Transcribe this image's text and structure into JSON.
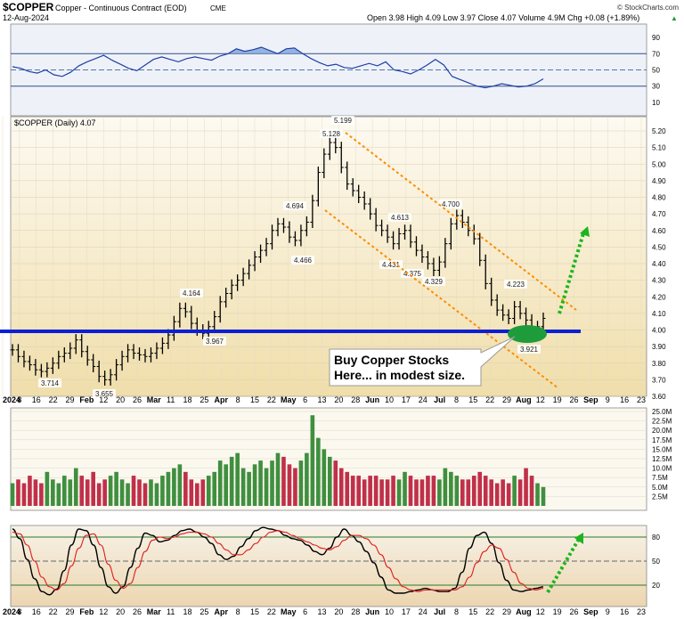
{
  "header": {
    "symbol": "$COPPER",
    "name": "Copper - Continuous Contract (EOD)",
    "exchange": "CME",
    "date": "12-Aug-2024",
    "watermark": "© StockCharts.com",
    "quote": "Open 3.98  High 4.09  Low 3.97  Close 4.07  Volume 4.9M  Chg +0.08 (+1.89%)",
    "quote_arrow": "▲"
  },
  "chart_data": [
    {
      "type": "line",
      "panel": "rsi",
      "ylim": [
        0,
        100
      ],
      "ticks": [
        "90",
        "70",
        "50",
        "30",
        "10"
      ],
      "levels": [
        70,
        50,
        30
      ],
      "series": [
        {
          "values": [
            54,
            52,
            48,
            46,
            50,
            44,
            42,
            47,
            55,
            60,
            64,
            68,
            62,
            57,
            52,
            49,
            56,
            63,
            66,
            63,
            60,
            64,
            66,
            64,
            62,
            67,
            70,
            76,
            73,
            75,
            78,
            74,
            70,
            76,
            77,
            70,
            64,
            59,
            55,
            57,
            53,
            52,
            55,
            58,
            55,
            60,
            50,
            48,
            45,
            50,
            56,
            63,
            56,
            42,
            38,
            34,
            30,
            28,
            30,
            33,
            31,
            29,
            30,
            33,
            39
          ]
        }
      ],
      "colors": {
        "line": "#1f3fa8",
        "fill": "#7fa3d8",
        "bg": "#eef2f8"
      }
    },
    {
      "type": "bar",
      "panel": "price",
      "title": "$COPPER (Daily) 4.07",
      "ylim": [
        3.55,
        5.25
      ],
      "ticks": [
        "5.20",
        "5.10",
        "5.00",
        "4.90",
        "4.80",
        "4.70",
        "4.60",
        "4.50",
        "4.40",
        "4.30",
        "4.20",
        "4.10",
        "4.00",
        "3.90",
        "3.80",
        "3.70",
        "3.60"
      ],
      "closes": [
        3.88,
        3.84,
        3.81,
        3.79,
        3.76,
        3.75,
        3.77,
        3.8,
        3.84,
        3.86,
        3.89,
        3.94,
        3.87,
        3.82,
        3.78,
        3.72,
        3.7,
        3.73,
        3.79,
        3.84,
        3.88,
        3.86,
        3.85,
        3.84,
        3.86,
        3.89,
        3.92,
        3.97,
        4.05,
        4.13,
        4.11,
        4.04,
        4.0,
        3.98,
        4.02,
        4.08,
        4.17,
        4.22,
        4.27,
        4.3,
        4.34,
        4.39,
        4.44,
        4.48,
        4.52,
        4.6,
        4.64,
        4.62,
        4.56,
        4.54,
        4.6,
        4.65,
        4.78,
        4.95,
        5.06,
        5.13,
        5.1,
        4.98,
        4.88,
        4.84,
        4.8,
        4.76,
        4.7,
        4.63,
        4.6,
        4.56,
        4.52,
        4.58,
        4.6,
        4.53,
        4.48,
        4.44,
        4.4,
        4.36,
        4.41,
        4.52,
        4.64,
        4.69,
        4.65,
        4.6,
        4.55,
        4.42,
        4.28,
        4.18,
        4.12,
        4.09,
        4.07,
        4.14,
        4.1,
        4.06,
        3.99,
        4.02,
        4.07
      ],
      "labels": [
        {
          "text": "3.714",
          "x": "Jan 22",
          "y": 3.714
        },
        {
          "text": "3.655",
          "x": "Feb 12",
          "y": 3.655
        },
        {
          "text": "4.164",
          "x": "Mar 18",
          "y": 4.164
        },
        {
          "text": "3.967",
          "x": "Mar 25",
          "y": 3.967
        },
        {
          "text": "4.694",
          "x": "May 1",
          "y": 4.694
        },
        {
          "text": "4.466",
          "x": "Apr 29",
          "y": 4.466
        },
        {
          "text": "5.128",
          "x": "May 13",
          "y": 5.128
        },
        {
          "text": "5.199",
          "x": "May 20",
          "y": 5.199
        },
        {
          "text": "4.613",
          "x": "Jun 10",
          "y": 4.613
        },
        {
          "text": "4.431",
          "x": "Jun 10",
          "y": 4.431
        },
        {
          "text": "4.375",
          "x": "Jun 17",
          "y": 4.375
        },
        {
          "text": "4.329",
          "x": "Jun 24",
          "y": 4.329
        },
        {
          "text": "4.700",
          "x": "Jul 8",
          "y": 4.7
        },
        {
          "text": "4.223",
          "x": "Jul 29",
          "y": 4.223
        },
        {
          "text": "3.921",
          "x": "Aug 5",
          "y": 3.921
        }
      ],
      "support_level": 4.0,
      "annotation": "Buy Copper Stocks Here... in modest size.",
      "colors": {
        "bar": "#000000",
        "support": "#0a1fd6",
        "channel": "#ff8c00",
        "arrow": "#1cb51c",
        "ellipse": "#1e9c3c",
        "bg_top": "#fdfaf2",
        "bg_bottom": "#f0deaa"
      }
    },
    {
      "type": "bar",
      "panel": "volume",
      "ylim": [
        0,
        25
      ],
      "ticks": [
        "25.0M",
        "22.5M",
        "20.0M",
        "17.5M",
        "15.0M",
        "12.5M",
        "10.0M",
        "7.5M",
        "5.0M",
        "2.5M"
      ],
      "values": [
        6,
        7,
        6,
        8,
        7,
        6,
        9,
        7,
        6,
        8,
        7,
        10,
        8,
        7,
        9,
        6,
        7,
        8,
        9,
        7,
        6,
        8,
        7,
        6,
        7,
        6,
        8,
        9,
        10,
        11,
        9,
        7,
        6,
        7,
        8,
        9,
        12,
        11,
        13,
        14,
        10,
        9,
        11,
        12,
        10,
        12,
        14,
        13,
        11,
        10,
        12,
        14,
        24,
        18,
        15,
        13,
        12,
        10,
        9,
        8,
        8,
        7,
        8,
        8,
        7,
        7,
        8,
        7,
        9,
        8,
        7,
        7,
        8,
        8,
        7,
        10,
        9,
        8,
        7,
        7,
        8,
        9,
        8,
        7,
        6,
        7,
        6,
        8,
        7,
        10,
        8,
        6,
        5
      ],
      "colors": {
        "up": "#3f8f3f",
        "down": "#c0304a",
        "bg": "#fbf8ef"
      }
    },
    {
      "type": "line",
      "panel": "stochastic",
      "ylim": [
        0,
        100
      ],
      "ticks": [
        "80",
        "50",
        "20"
      ],
      "levels": [
        80,
        50,
        20
      ],
      "series": [
        {
          "values": [
            90,
            78,
            52,
            28,
            12,
            8,
            15,
            38,
            70,
            90,
            88,
            70,
            42,
            18,
            10,
            18,
            42,
            66,
            85,
            82,
            74,
            76,
            82,
            88,
            90,
            86,
            80,
            72,
            58,
            52,
            56,
            68,
            78,
            88,
            92,
            90,
            88,
            82,
            78,
            76,
            70,
            62,
            58,
            66,
            80,
            90,
            82,
            74,
            62,
            48,
            30,
            14,
            10,
            10,
            12,
            14,
            16,
            14,
            12,
            12,
            16,
            36,
            66,
            82,
            86,
            72,
            48,
            26,
            14,
            12,
            14,
            16,
            18
          ]
        },
        {
          "values": [
            86,
            84,
            70,
            50,
            30,
            18,
            14,
            22,
            44,
            66,
            82,
            84,
            70,
            46,
            26,
            16,
            22,
            42,
            62,
            76,
            80,
            78,
            80,
            84,
            86,
            86,
            84,
            80,
            72,
            64,
            58,
            58,
            64,
            72,
            80,
            86,
            88,
            86,
            82,
            78,
            74,
            70,
            66,
            64,
            68,
            76,
            82,
            82,
            78,
            70,
            58,
            42,
            28,
            18,
            14,
            12,
            14,
            14,
            14,
            14,
            14,
            18,
            30,
            48,
            62,
            70,
            66,
            52,
            36,
            22,
            16,
            14,
            16
          ]
        }
      ],
      "colors": {
        "fast": "#000000",
        "slow": "#e02020",
        "bg_top": "#f7f2e8",
        "bg_bottom": "#ecd6b0"
      }
    }
  ],
  "x_axis": {
    "labels": [
      {
        "text": "2024",
        "bold": true
      },
      {
        "text": "8"
      },
      {
        "text": "16"
      },
      {
        "text": "22"
      },
      {
        "text": "29"
      },
      {
        "text": "Feb",
        "bold": true
      },
      {
        "text": "12"
      },
      {
        "text": "20"
      },
      {
        "text": "26"
      },
      {
        "text": "Mar",
        "bold": true
      },
      {
        "text": "11"
      },
      {
        "text": "18"
      },
      {
        "text": "25"
      },
      {
        "text": "Apr",
        "bold": true
      },
      {
        "text": "8"
      },
      {
        "text": "15"
      },
      {
        "text": "22"
      },
      {
        "text": "May",
        "bold": true
      },
      {
        "text": "6"
      },
      {
        "text": "13"
      },
      {
        "text": "20"
      },
      {
        "text": "28"
      },
      {
        "text": "Jun",
        "bold": true
      },
      {
        "text": "10"
      },
      {
        "text": "17"
      },
      {
        "text": "24"
      },
      {
        "text": "Jul",
        "bold": true
      },
      {
        "text": "8"
      },
      {
        "text": "15"
      },
      {
        "text": "22"
      },
      {
        "text": "29"
      },
      {
        "text": "Aug",
        "bold": true
      },
      {
        "text": "12"
      },
      {
        "text": "19"
      },
      {
        "text": "26"
      },
      {
        "text": "Sep",
        "bold": true
      },
      {
        "text": "9"
      },
      {
        "text": "16"
      },
      {
        "text": "23"
      }
    ]
  }
}
